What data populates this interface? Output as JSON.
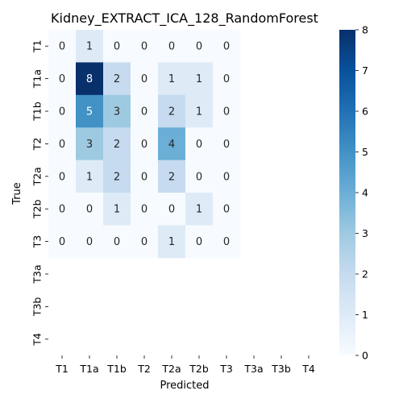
{
  "chart_data": {
    "type": "heatmap",
    "title": "Kidney_EXTRACT_ICA_128_RandomForest",
    "xlabel": "Predicted",
    "ylabel": "True",
    "x_categories": [
      "T1",
      "T1a",
      "T1b",
      "T2",
      "T2a",
      "T2b",
      "T3",
      "T3a",
      "T3b",
      "T4"
    ],
    "y_categories": [
      "T1",
      "T1a",
      "T1b",
      "T2",
      "T2a",
      "T2b",
      "T3",
      "T3a",
      "T3b",
      "T4"
    ],
    "values": [
      [
        0,
        1,
        0,
        0,
        0,
        0,
        0,
        null,
        null,
        null
      ],
      [
        0,
        8,
        2,
        0,
        1,
        1,
        0,
        null,
        null,
        null
      ],
      [
        0,
        5,
        3,
        0,
        2,
        1,
        0,
        null,
        null,
        null
      ],
      [
        0,
        3,
        2,
        0,
        4,
        0,
        0,
        null,
        null,
        null
      ],
      [
        0,
        1,
        2,
        0,
        2,
        0,
        0,
        null,
        null,
        null
      ],
      [
        0,
        0,
        1,
        0,
        0,
        1,
        0,
        null,
        null,
        null
      ],
      [
        0,
        0,
        0,
        0,
        1,
        0,
        0,
        null,
        null,
        null
      ],
      [
        null,
        null,
        null,
        null,
        null,
        null,
        null,
        null,
        null,
        null
      ],
      [
        null,
        null,
        null,
        null,
        null,
        null,
        null,
        null,
        null,
        null
      ],
      [
        null,
        null,
        null,
        null,
        null,
        null,
        null,
        null,
        null,
        null
      ]
    ],
    "colorbar": {
      "range": [
        0,
        8
      ],
      "ticks": [
        0,
        1,
        2,
        3,
        4,
        5,
        6,
        7,
        8
      ],
      "colormap": "Blues"
    },
    "grid": false
  }
}
